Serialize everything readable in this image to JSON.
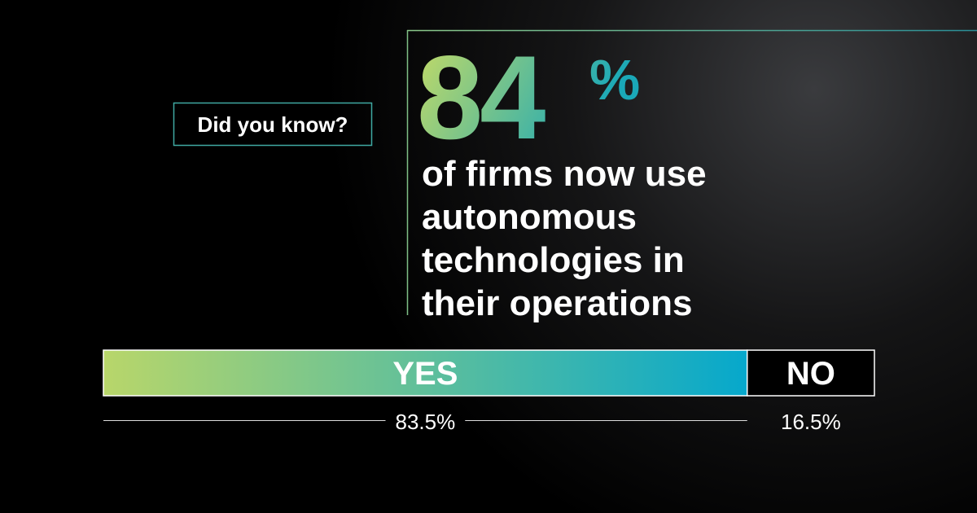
{
  "callout": "Did you know?",
  "headline": {
    "number": "84",
    "unit": "%",
    "lines": [
      "of firms now use",
      "autonomous",
      "technologies in",
      "their operations"
    ]
  },
  "bar": {
    "segments": [
      {
        "name": "YES",
        "value": 83.5,
        "value_label": "83.5%",
        "colors": [
          "#b8d66a",
          "#06a8cc"
        ]
      },
      {
        "name": "NO",
        "value": 16.5,
        "value_label": "16.5%",
        "colors": [
          "#000000",
          "#000000"
        ]
      }
    ]
  }
}
